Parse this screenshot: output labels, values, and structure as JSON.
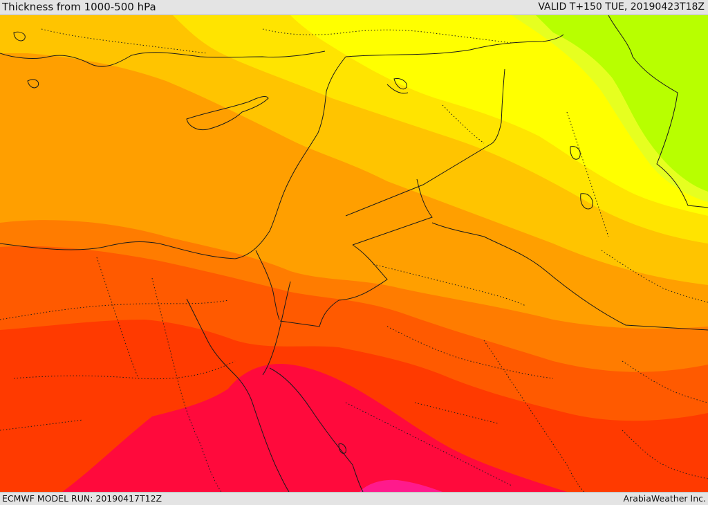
{
  "header": {
    "title": "Thickness from 1000-500 hPa",
    "valid_time": "VALID T+150 TUE, 20190423T18Z"
  },
  "footer": {
    "model_run": "ECMWF MODEL RUN: 20190417T12Z",
    "credit": "ArabiaWeather Inc."
  },
  "colors": {
    "band_lime": "#b8ff00",
    "band_yellow_green": "#e6ff20",
    "band_yellow": "#ffff00",
    "band_gold": "#ffe400",
    "band_light_orange": "#ffc400",
    "band_orange": "#ff9f00",
    "band_dark_orange": "#ff7c00",
    "band_red_orange": "#ff5a00",
    "band_orange_red": "#ff3a00",
    "band_crimson": "#ff0a3c",
    "band_magenta": "#ff1a8c"
  }
}
